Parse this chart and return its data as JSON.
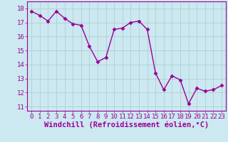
{
  "x": [
    0,
    1,
    2,
    3,
    4,
    5,
    6,
    7,
    8,
    9,
    10,
    11,
    12,
    13,
    14,
    15,
    16,
    17,
    18,
    19,
    20,
    21,
    22,
    23
  ],
  "y": [
    17.8,
    17.5,
    17.1,
    17.8,
    17.3,
    16.9,
    16.8,
    15.3,
    14.2,
    14.5,
    16.5,
    16.6,
    17.0,
    17.1,
    16.5,
    13.4,
    12.2,
    13.2,
    12.9,
    11.2,
    12.3,
    12.1,
    12.2,
    12.5
  ],
  "line_color": "#990099",
  "marker": "D",
  "marker_size": 2.5,
  "bg_color": "#cce8f0",
  "grid_color": "#aacccc",
  "xlabel": "Windchill (Refroidissement éolien,°C)",
  "xlabel_color": "#990099",
  "tick_color": "#990099",
  "spine_color": "#990099",
  "ylim": [
    10.7,
    18.5
  ],
  "xlim": [
    -0.5,
    23.5
  ],
  "yticks": [
    11,
    12,
    13,
    14,
    15,
    16,
    17,
    18
  ],
  "xticks": [
    0,
    1,
    2,
    3,
    4,
    5,
    6,
    7,
    8,
    9,
    10,
    11,
    12,
    13,
    14,
    15,
    16,
    17,
    18,
    19,
    20,
    21,
    22,
    23
  ],
  "line_width": 1.0,
  "font_size": 6.5,
  "xlabel_fontsize": 7.5
}
